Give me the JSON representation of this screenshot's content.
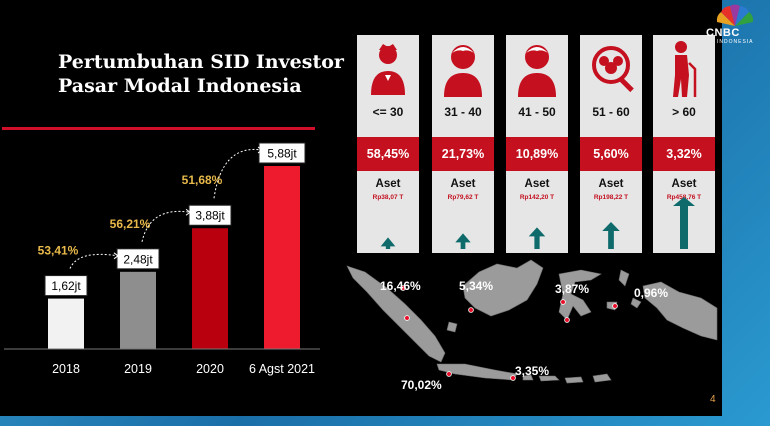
{
  "title": {
    "line1": "Pertumbuhan SID Investor",
    "line2": "Pasar Modal Indonesia"
  },
  "chart_data": {
    "type": "bar",
    "categories": [
      "2018",
      "2019",
      "2020",
      "6 Agst 2021"
    ],
    "values": [
      1.62,
      2.48,
      3.88,
      5.88
    ],
    "value_labels": [
      "1,62jt",
      "2,48jt",
      "3,88jt",
      "5,88jt"
    ],
    "growth_labels": [
      "53,41%",
      "56,21%",
      "51,68%"
    ],
    "bar_colors": [
      "#f2f2f2",
      "#8e8e8e",
      "#b8000f",
      "#ee1b2e"
    ],
    "ylim": [
      0,
      6.2
    ],
    "grid": false
  },
  "age_groups": [
    {
      "icon": "young-person-icon",
      "range": "<= 30",
      "pct": "58,45%",
      "label": "Aset",
      "asset": "Rp38,07 T",
      "asset_value": 38.07
    },
    {
      "icon": "person-icon",
      "range": "31 - 40",
      "pct": "21,73%",
      "label": "Aset",
      "asset": "Rp79,62 T",
      "asset_value": 79.62
    },
    {
      "icon": "person-icon",
      "range": "41 - 50",
      "pct": "10,89%",
      "label": "Aset",
      "asset": "Rp142,20 T",
      "asset_value": 142.2
    },
    {
      "icon": "group-search-icon",
      "range": "51 - 60",
      "pct": "5,60%",
      "label": "Aset",
      "asset": "Rp198,22 T",
      "asset_value": 198.22
    },
    {
      "icon": "elderly-person-icon",
      "range": "> 60",
      "pct": "3,32%",
      "label": "Aset",
      "asset": "Rp458,76 T",
      "asset_value": 458.76
    }
  ],
  "regions": {
    "sumatera": "16,46%",
    "kalimantan": "5,34%",
    "sulawesi": "3,87%",
    "papua_maluku": "0,96%",
    "bali_nusa": "3,35%",
    "jawa": "70,02%"
  },
  "page_number": "4",
  "logo": {
    "name": "CNBC",
    "sub": "INDONESIA"
  },
  "colors": {
    "red": "#c4101f",
    "accent": "#e8b94a",
    "arrow": "#0f6b6b"
  }
}
